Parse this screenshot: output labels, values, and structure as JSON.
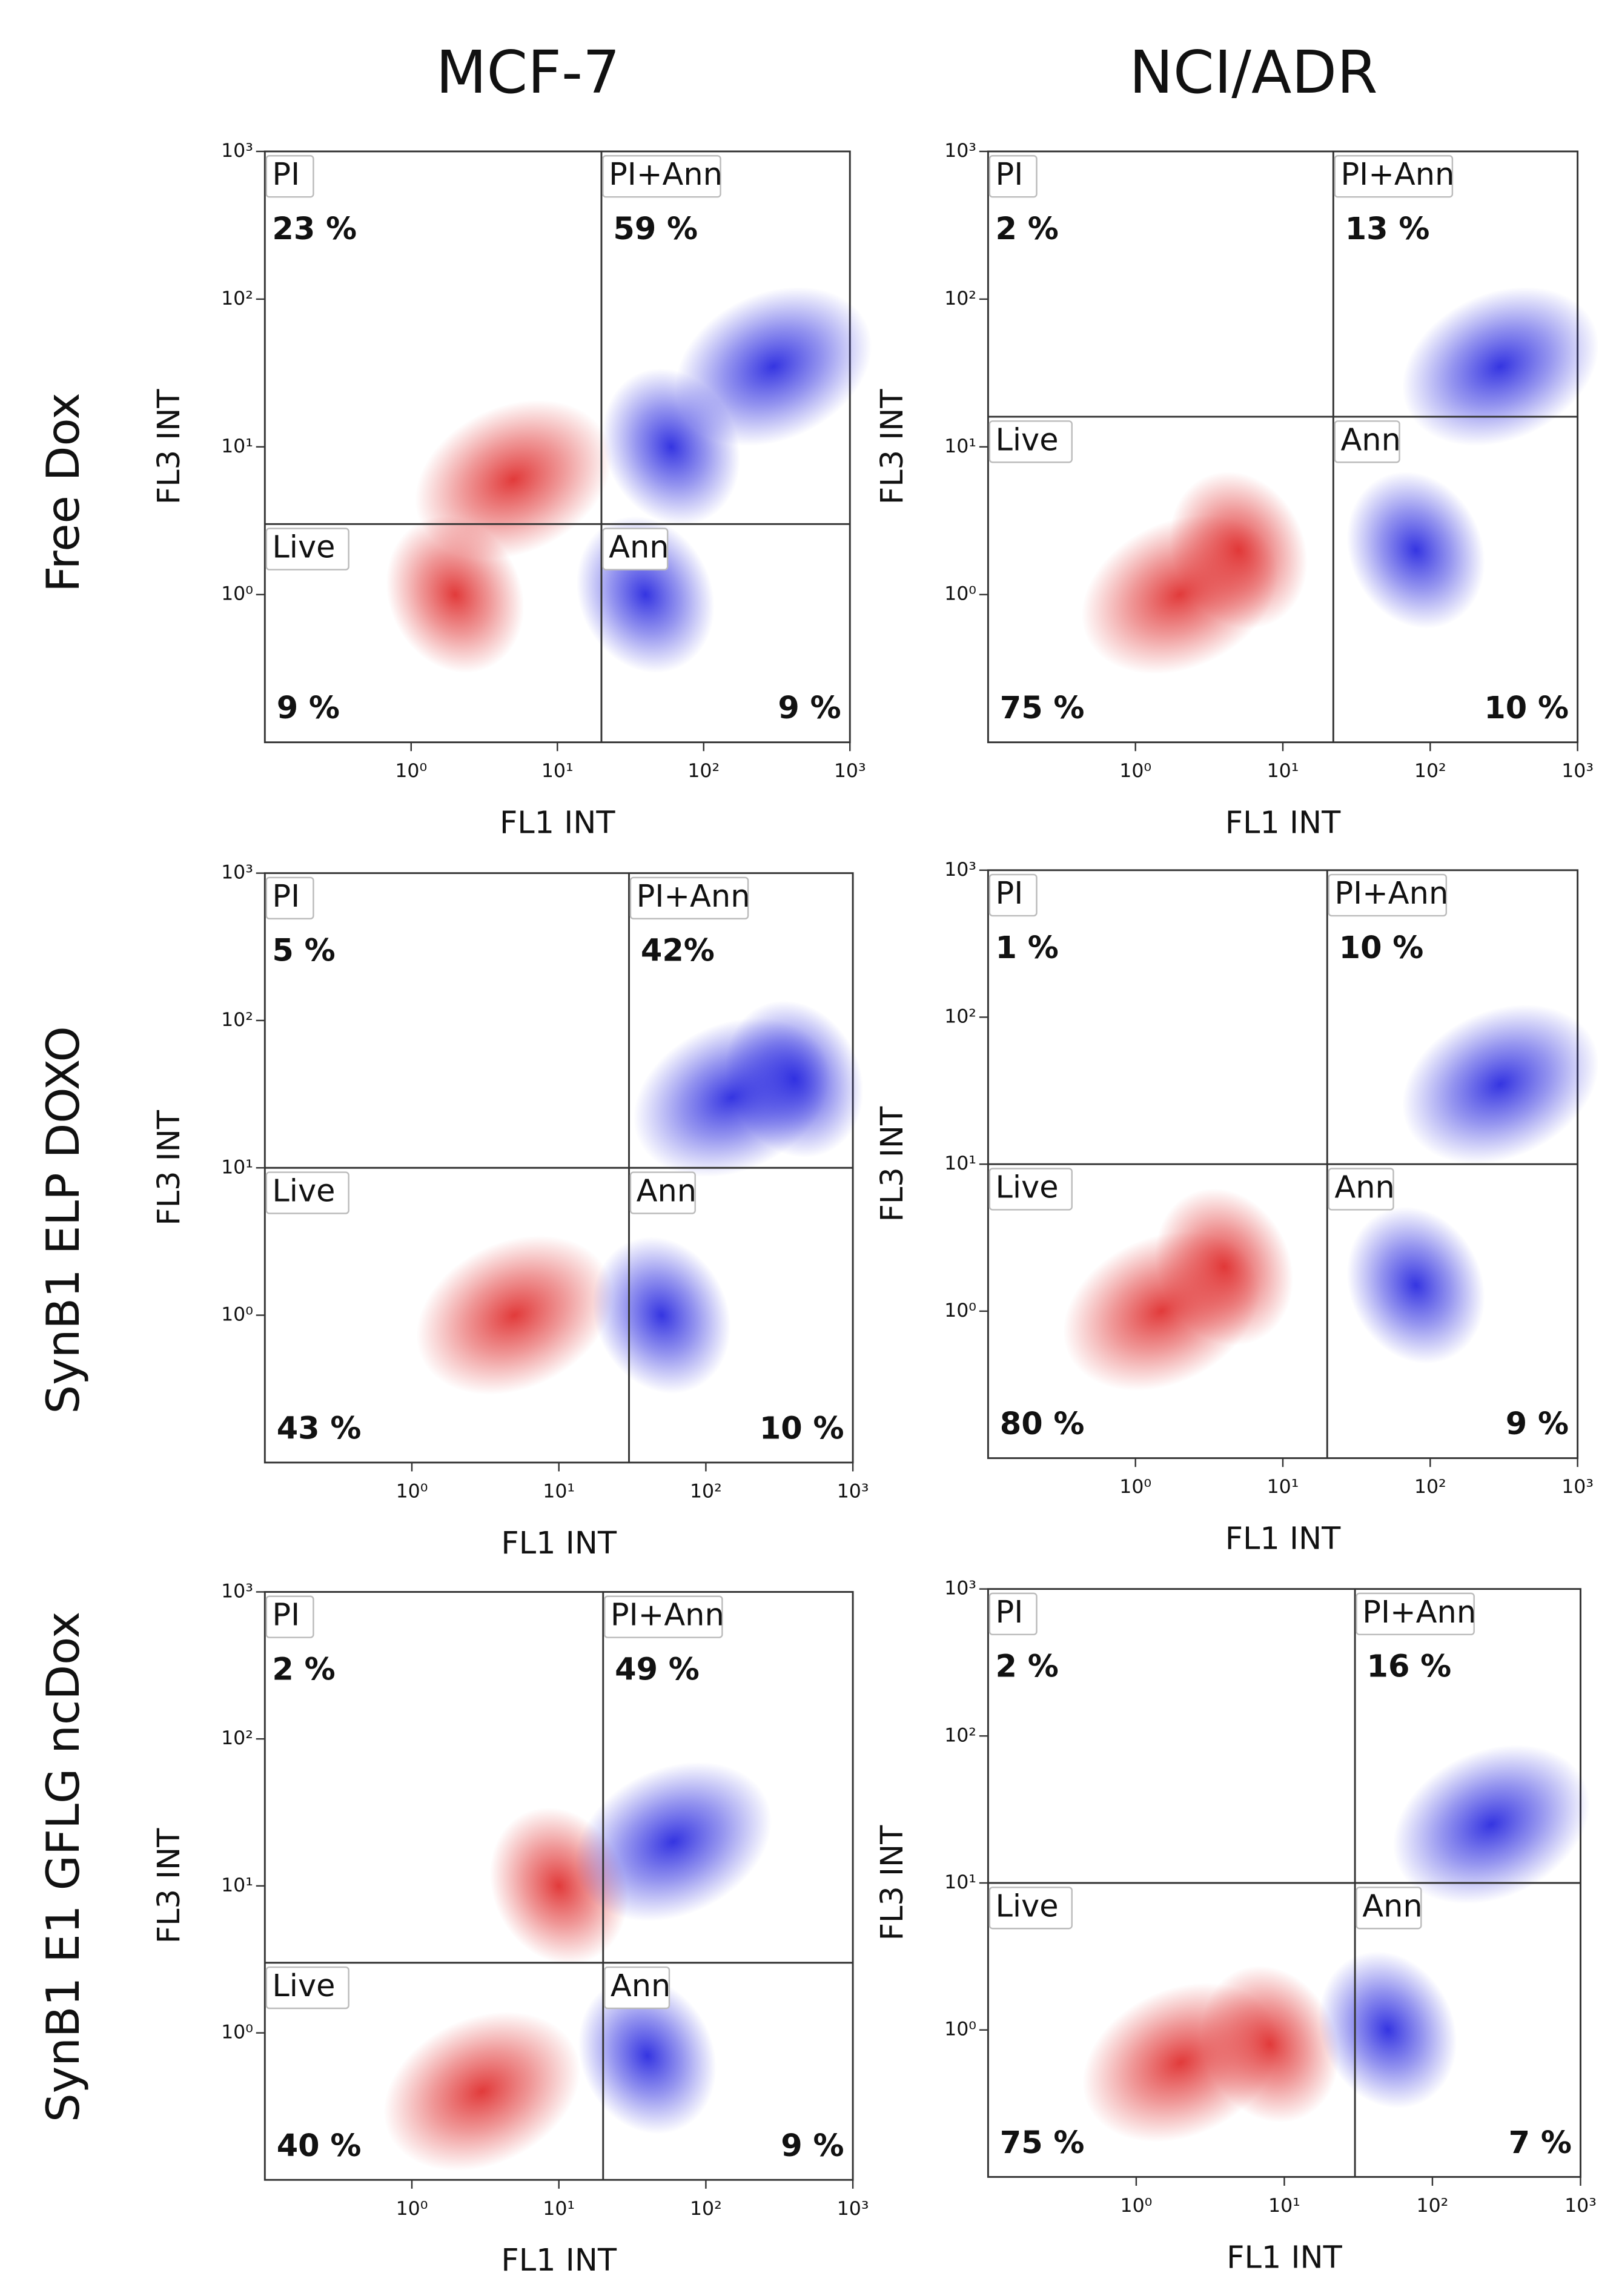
{
  "chart_data": [
    {
      "type": "flow-quadrant",
      "column_title": "MCF-7",
      "row_title": "Free Dox",
      "xlabel": "FL1 INT",
      "ylabel": "FL3 INT",
      "log_scale": true,
      "xlim": [
        0.1,
        1000
      ],
      "ylim": [
        0.1,
        1000
      ],
      "xticks": [
        {
          "value": 1,
          "label": "10⁰"
        },
        {
          "value": 10,
          "label": "10¹"
        },
        {
          "value": 100,
          "label": "10²"
        },
        {
          "value": 1000,
          "label": "10³"
        }
      ],
      "yticks": [
        {
          "value": 1,
          "label": "10⁰"
        },
        {
          "value": 10,
          "label": "10¹"
        },
        {
          "value": 100,
          "label": "10²"
        },
        {
          "value": 1000,
          "label": "10³"
        }
      ],
      "gate_x": 20,
      "gate_y": 3,
      "quadrants": {
        "names": [
          "PI",
          "PI+Ann",
          "Live",
          "Ann"
        ],
        "values": [
          23,
          59,
          9,
          9
        ],
        "value_labels": [
          "23 %",
          "59 %",
          "9 %",
          "9 %"
        ]
      },
      "series": [
        {
          "color": "#e03030",
          "x": [
            5,
            2
          ],
          "y": [
            6,
            1
          ]
        },
        {
          "color": "#2a2ae0",
          "x": [
            300,
            60,
            40
          ],
          "y": [
            35,
            10,
            1
          ]
        }
      ]
    },
    {
      "type": "flow-quadrant",
      "column_title": "NCI/ADR",
      "xlabel": "FL1 INT",
      "ylabel": "FL3 INT",
      "log_scale": true,
      "xlim": [
        0.1,
        1000
      ],
      "ylim": [
        0.1,
        1000
      ],
      "xticks": [
        {
          "value": 1,
          "label": "10⁰"
        },
        {
          "value": 10,
          "label": "10¹"
        },
        {
          "value": 100,
          "label": "10²"
        },
        {
          "value": 1000,
          "label": "10³"
        }
      ],
      "yticks": [
        {
          "value": 1,
          "label": "10⁰"
        },
        {
          "value": 10,
          "label": "10¹"
        },
        {
          "value": 100,
          "label": "10²"
        },
        {
          "value": 1000,
          "label": "10³"
        }
      ],
      "gate_x": 22,
      "gate_y": 16,
      "quadrants": {
        "names": [
          "PI",
          "PI+Ann",
          "Live",
          "Ann"
        ],
        "values": [
          2,
          13,
          75,
          10
        ],
        "value_labels": [
          "2 %",
          "13 %",
          "75 %",
          "10 %"
        ]
      },
      "series": [
        {
          "color": "#e03030",
          "x": [
            2,
            5
          ],
          "y": [
            1,
            2
          ]
        },
        {
          "color": "#2a2ae0",
          "x": [
            300,
            80
          ],
          "y": [
            35,
            2
          ]
        }
      ]
    },
    {
      "type": "flow-quadrant",
      "row_title": "SynB1 ELP DOXO",
      "xlabel": "FL1 INT",
      "ylabel": "FL3 INT",
      "log_scale": true,
      "xlim": [
        0.1,
        1000
      ],
      "ylim": [
        0.1,
        1000
      ],
      "xticks": [
        {
          "value": 1,
          "label": "10⁰"
        },
        {
          "value": 10,
          "label": "10¹"
        },
        {
          "value": 100,
          "label": "10²"
        },
        {
          "value": 1000,
          "label": "10³"
        }
      ],
      "yticks": [
        {
          "value": 1,
          "label": "10⁰"
        },
        {
          "value": 10,
          "label": "10¹"
        },
        {
          "value": 100,
          "label": "10²"
        },
        {
          "value": 1000,
          "label": "10³"
        }
      ],
      "gate_x": 30,
      "gate_y": 10,
      "quadrants": {
        "names": [
          "PI",
          "PI+Ann",
          "Live",
          "Ann"
        ],
        "values": [
          5,
          42,
          43,
          10
        ],
        "value_labels": [
          "5 %",
          "42%",
          "43 %",
          "10 %"
        ]
      },
      "series": [
        {
          "color": "#e03030",
          "x": [
            5
          ],
          "y": [
            1
          ]
        },
        {
          "color": "#2a2ae0",
          "x": [
            150,
            400,
            50
          ],
          "y": [
            30,
            40,
            1
          ]
        }
      ]
    },
    {
      "type": "flow-quadrant",
      "xlabel": "FL1 INT",
      "ylabel": "FL3 INT",
      "log_scale": true,
      "xlim": [
        0.1,
        1000
      ],
      "ylim": [
        0.1,
        1000
      ],
      "xticks": [
        {
          "value": 1,
          "label": "10⁰"
        },
        {
          "value": 10,
          "label": "10¹"
        },
        {
          "value": 100,
          "label": "10²"
        },
        {
          "value": 1000,
          "label": "10³"
        }
      ],
      "yticks": [
        {
          "value": 1,
          "label": "10⁰"
        },
        {
          "value": 10,
          "label": "10¹"
        },
        {
          "value": 100,
          "label": "10²"
        },
        {
          "value": 1000,
          "label": "10³"
        }
      ],
      "gate_x": 20,
      "gate_y": 10,
      "quadrants": {
        "names": [
          "PI",
          "PI+Ann",
          "Live",
          "Ann"
        ],
        "values": [
          1,
          10,
          80,
          9
        ],
        "value_labels": [
          "1 %",
          "10 %",
          "80 %",
          "9 %"
        ]
      },
      "series": [
        {
          "color": "#e03030",
          "x": [
            1.5,
            4
          ],
          "y": [
            1,
            2
          ]
        },
        {
          "color": "#2a2ae0",
          "x": [
            300,
            80
          ],
          "y": [
            35,
            1.5
          ]
        }
      ]
    },
    {
      "type": "flow-quadrant",
      "row_title": "SynB1 E1 GFLG ncDox",
      "xlabel": "FL1 INT",
      "ylabel": "FL3 INT",
      "log_scale": true,
      "xlim": [
        0.1,
        1000
      ],
      "ylim": [
        0.1,
        1000
      ],
      "xticks": [
        {
          "value": 1,
          "label": "10⁰"
        },
        {
          "value": 10,
          "label": "10¹"
        },
        {
          "value": 100,
          "label": "10²"
        },
        {
          "value": 1000,
          "label": "10³"
        }
      ],
      "yticks": [
        {
          "value": 1,
          "label": "10⁰"
        },
        {
          "value": 10,
          "label": "10¹"
        },
        {
          "value": 100,
          "label": "10²"
        },
        {
          "value": 1000,
          "label": "10³"
        }
      ],
      "gate_x": 20,
      "gate_y": 3,
      "quadrants": {
        "names": [
          "PI",
          "PI+Ann",
          "Live",
          "Ann"
        ],
        "values": [
          2,
          49,
          40,
          9
        ],
        "value_labels": [
          "2 %",
          "49 %",
          "40 %",
          "9 %"
        ]
      },
      "series": [
        {
          "color": "#e03030",
          "x": [
            3,
            10
          ],
          "y": [
            0.4,
            10
          ]
        },
        {
          "color": "#2a2ae0",
          "x": [
            60,
            40
          ],
          "y": [
            20,
            0.7
          ]
        }
      ]
    },
    {
      "type": "flow-quadrant",
      "xlabel": "FL1 INT",
      "ylabel": "FL3 INT",
      "log_scale": true,
      "xlim": [
        0.1,
        1000
      ],
      "ylim": [
        0.1,
        1000
      ],
      "xticks": [
        {
          "value": 1,
          "label": "10⁰"
        },
        {
          "value": 10,
          "label": "10¹"
        },
        {
          "value": 100,
          "label": "10²"
        },
        {
          "value": 1000,
          "label": "10³"
        }
      ],
      "yticks": [
        {
          "value": 1,
          "label": "10⁰"
        },
        {
          "value": 10,
          "label": "10¹"
        },
        {
          "value": 100,
          "label": "10²"
        },
        {
          "value": 1000,
          "label": "10³"
        }
      ],
      "gate_x": 30,
      "gate_y": 10,
      "quadrants": {
        "names": [
          "PI",
          "PI+Ann",
          "Live",
          "Ann"
        ],
        "values": [
          2,
          16,
          75,
          7
        ],
        "value_labels": [
          "2 %",
          "16 %",
          "75 %",
          "7 %"
        ]
      },
      "series": [
        {
          "color": "#e03030",
          "x": [
            2,
            8
          ],
          "y": [
            0.6,
            0.8
          ]
        },
        {
          "color": "#2a2ae0",
          "x": [
            250,
            50
          ],
          "y": [
            25,
            1
          ]
        }
      ]
    }
  ]
}
